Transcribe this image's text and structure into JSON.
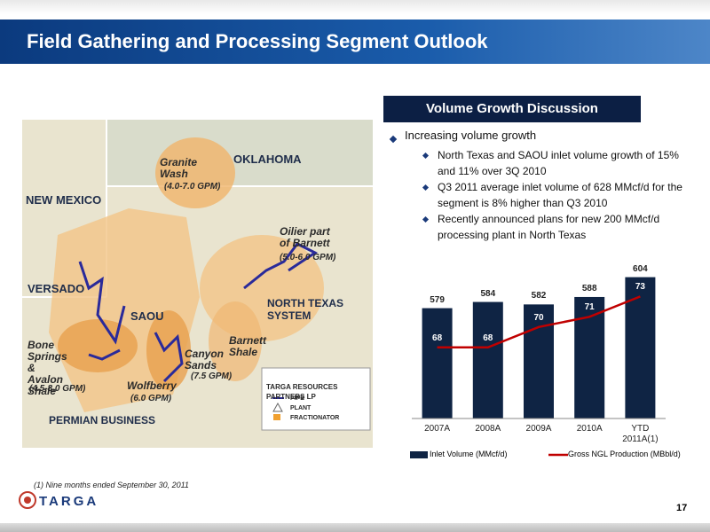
{
  "title": "Field Gathering and Processing Segment Outlook",
  "panel_title": "Volume Growth Discussion",
  "bullets": {
    "main": "Increasing volume growth",
    "sub": [
      "North Texas and SAOU inlet volume growth of 15% and 11% over 3Q 2010",
      "Q3 2011 average inlet volume of 628 MMcf/d for the segment is 8% higher than Q3 2010",
      "Recently announced plans for new 200 MMcf/d processing plant in North Texas"
    ]
  },
  "map": {
    "labels": [
      "OKLAHOMA",
      "NEW MEXICO",
      "Granite Wash",
      "(4.0-7.0 GPM)",
      "Oilier part of Barnett",
      "(5.0-6.0 GPM)",
      "VERSADO",
      "SAOU",
      "NORTH TEXAS SYSTEM",
      "Barnett Shale",
      "Canyon Sands",
      "(7.5 GPM)",
      "Bone Springs & Avalon Shale",
      "(4.5-8.0 GPM)",
      "Wolfberry",
      "(6.0 GPM)",
      "PERMIAN BUSINESS"
    ],
    "legend": {
      "title": "TARGA RESOURCES PARTNERS LP",
      "items": [
        "PIPE",
        "PLANT",
        "FRACTIONATOR"
      ]
    }
  },
  "chart_data": {
    "type": "bar",
    "categories": [
      "2007A",
      "2008A",
      "2009A",
      "2010A",
      "YTD 2011A(1)"
    ],
    "series": [
      {
        "name": "Inlet Volume (MMcf/d)",
        "color": "#0f2444",
        "values": [
          579,
          584,
          582,
          588,
          604
        ]
      },
      {
        "name": "Gross NGL Production (MBbl/d)",
        "color": "#c00000",
        "type": "line",
        "axis": "y2",
        "values": [
          68,
          68,
          70,
          71,
          73
        ]
      }
    ],
    "ylim": [
      490,
      613
    ],
    "y2lim": [
      61,
      76
    ]
  },
  "footnote": "(1)  Nine months ended September 30, 2011",
  "logo": "TARGA",
  "page_number": "17"
}
